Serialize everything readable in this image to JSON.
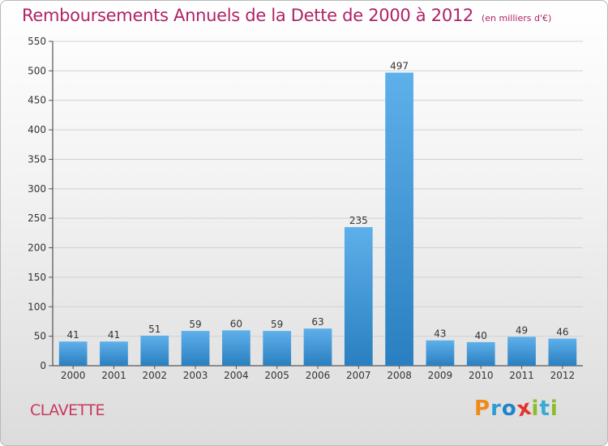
{
  "header": {
    "title": "Remboursements Annuels de la Dette de 2000 à 2012",
    "unit": "(en milliers d'€)"
  },
  "footer": {
    "commune": "CLAVETTE",
    "logo": [
      "P",
      "r",
      "o",
      "x",
      "i",
      "t",
      "i"
    ]
  },
  "colors": {
    "bar_light": "#5eb0ea",
    "bar_dark": "#2a7fc0",
    "title": "#b02266",
    "logo": [
      "#ef8a16",
      "#2f9bd6",
      "#1f84c8",
      "#e4322b",
      "#8bbd2a",
      "#3aa8d8",
      "#8bbd2a"
    ]
  },
  "chart_data": {
    "type": "bar",
    "title": "Remboursements Annuels de la Dette de 2000 à 2012",
    "xlabel": "",
    "ylabel": "",
    "categories": [
      "2000",
      "2001",
      "2002",
      "2003",
      "2004",
      "2005",
      "2006",
      "2007",
      "2008",
      "2009",
      "2010",
      "2011",
      "2012"
    ],
    "values": [
      41,
      41,
      51,
      59,
      60,
      59,
      63,
      235,
      497,
      43,
      40,
      49,
      46
    ],
    "ylim": [
      0,
      550
    ],
    "yticks": [
      0,
      50,
      100,
      150,
      200,
      250,
      300,
      350,
      400,
      450,
      500,
      550
    ],
    "grid": true,
    "data_labels": true
  }
}
